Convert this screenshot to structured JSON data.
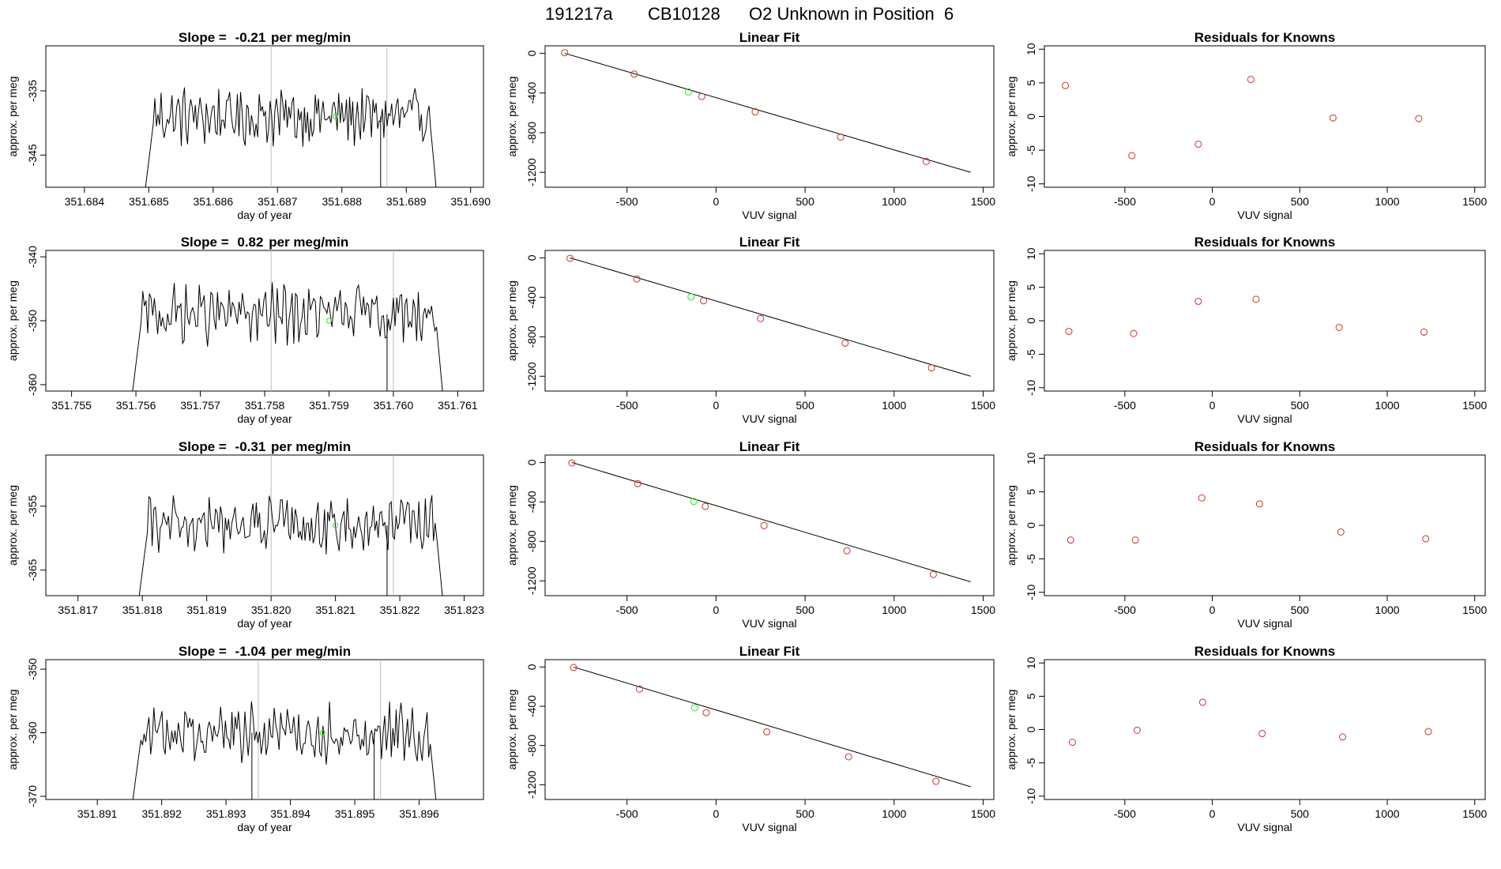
{
  "figure": {
    "title_parts": [
      "191217a",
      "CB10128",
      "O2 Unknown in Position  6"
    ]
  },
  "chart_data": [
    {
      "row": 0,
      "col": 0,
      "type": "line",
      "title_prefix": "Slope = ",
      "slope": "-0.21",
      "title_suffix": " per meg/min",
      "xlabel": "day of year",
      "ylabel": "approx. per meg",
      "xlim": [
        351.6834,
        351.6902
      ],
      "ylim": [
        -350,
        -328
      ],
      "xticks": [
        "351.684",
        "351.685",
        "351.686",
        "351.687",
        "351.688",
        "351.689",
        "351.690"
      ],
      "yticks": [
        "-335",
        "-345"
      ],
      "vlines": [
        351.6869,
        351.6887
      ],
      "x_start": 351.6849,
      "x_end": 351.6895,
      "y_center": -339,
      "amplitude": 3,
      "unknown_point": [
        351.6879,
        -339
      ]
    },
    {
      "row": 0,
      "col": 1,
      "type": "scatter",
      "title": "Linear Fit",
      "xlabel": "VUV signal",
      "ylabel": "approx. per meg",
      "xlim": [
        -960,
        1560
      ],
      "ylim": [
        -1350,
        75
      ],
      "xticks": [
        "-500",
        "0",
        "500",
        "1000",
        "1500"
      ],
      "yticks": [
        "0",
        "-400",
        "-800",
        "-1200"
      ],
      "fit_line": [
        [
          -850,
          0
        ],
        [
          1430,
          -1200
        ]
      ],
      "knowns": [
        [
          -850,
          5
        ],
        [
          -460,
          -210
        ],
        [
          -80,
          -435
        ],
        [
          220,
          -590
        ],
        [
          700,
          -845
        ],
        [
          1180,
          -1090
        ]
      ],
      "unknown_point": [
        -155,
        -390
      ]
    },
    {
      "row": 0,
      "col": 2,
      "type": "scatter",
      "title": "Residuals for Knowns",
      "xlabel": "VUV signal",
      "ylabel": "approx. per meg",
      "xlim": [
        -960,
        1560
      ],
      "ylim": [
        -10.5,
        10.5
      ],
      "xticks": [
        "-500",
        "0",
        "500",
        "1000",
        "1500"
      ],
      "yticks": [
        "10",
        "5",
        "0",
        "-5",
        "-10"
      ],
      "points": [
        [
          -840,
          4.6
        ],
        [
          -460,
          -5.8
        ],
        [
          -80,
          -4.1
        ],
        [
          220,
          5.5
        ],
        [
          690,
          -0.2
        ],
        [
          1180,
          -0.3
        ]
      ]
    },
    {
      "row": 1,
      "col": 0,
      "type": "line",
      "title_prefix": "Slope = ",
      "slope": "0.82",
      "title_suffix": " per meg/min",
      "xlabel": "day of year",
      "ylabel": "approx. per meg",
      "xlim": [
        351.7546,
        351.7614
      ],
      "ylim": [
        -361,
        -339
      ],
      "xticks": [
        "351.755",
        "351.756",
        "351.757",
        "351.758",
        "351.759",
        "351.760",
        "351.761"
      ],
      "yticks": [
        "-340",
        "-350",
        "-360"
      ],
      "vlines": [
        351.7581,
        351.76
      ],
      "x_start": 351.7559,
      "x_end": 351.7608,
      "y_center": -349,
      "amplitude": 3,
      "unknown_point": [
        351.759,
        -350
      ]
    },
    {
      "row": 1,
      "col": 1,
      "type": "scatter",
      "title": "Linear Fit",
      "xlabel": "VUV signal",
      "ylabel": "approx. per meg",
      "xlim": [
        -960,
        1560
      ],
      "ylim": [
        -1350,
        75
      ],
      "xticks": [
        "-500",
        "0",
        "500",
        "1000",
        "1500"
      ],
      "yticks": [
        "0",
        "-400",
        "-800",
        "-1200"
      ],
      "fit_line": [
        [
          -820,
          0
        ],
        [
          1430,
          -1200
        ]
      ],
      "knowns": [
        [
          -820,
          -5
        ],
        [
          -445,
          -215
        ],
        [
          -70,
          -435
        ],
        [
          250,
          -615
        ],
        [
          725,
          -865
        ],
        [
          1210,
          -1115
        ]
      ],
      "unknown_point": [
        -140,
        -395
      ]
    },
    {
      "row": 1,
      "col": 2,
      "type": "scatter",
      "title": "Residuals for Knowns",
      "xlabel": "VUV signal",
      "ylabel": "approx. per meg",
      "xlim": [
        -960,
        1560
      ],
      "ylim": [
        -10.5,
        10.5
      ],
      "xticks": [
        "-500",
        "0",
        "500",
        "1000",
        "1500"
      ],
      "yticks": [
        "10",
        "5",
        "0",
        "-5",
        "-10"
      ],
      "points": [
        [
          -820,
          -1.6
        ],
        [
          -450,
          -1.9
        ],
        [
          -80,
          2.9
        ],
        [
          250,
          3.2
        ],
        [
          725,
          -1.0
        ],
        [
          1210,
          -1.7
        ]
      ]
    },
    {
      "row": 2,
      "col": 0,
      "type": "line",
      "title_prefix": "Slope = ",
      "slope": "-0.31",
      "title_suffix": " per meg/min",
      "xlabel": "day of year",
      "ylabel": "approx. per meg",
      "xlim": [
        351.8165,
        351.8233
      ],
      "ylim": [
        -369,
        -347
      ],
      "xticks": [
        "351.817",
        "351.818",
        "351.819",
        "351.820",
        "351.821",
        "351.822",
        "351.823"
      ],
      "yticks": [
        "-355",
        "-365"
      ],
      "vlines": [
        351.82,
        351.8219
      ],
      "x_start": 351.8179,
      "x_end": 351.8227,
      "y_center": -358,
      "amplitude": 3,
      "unknown_point": [
        351.821,
        -358
      ]
    },
    {
      "row": 2,
      "col": 1,
      "type": "scatter",
      "title": "Linear Fit",
      "xlabel": "VUV signal",
      "ylabel": "approx. per meg",
      "xlim": [
        -960,
        1560
      ],
      "ylim": [
        -1350,
        75
      ],
      "xticks": [
        "-500",
        "0",
        "500",
        "1000",
        "1500"
      ],
      "yticks": [
        "0",
        "-400",
        "-800",
        "-1200"
      ],
      "fit_line": [
        [
          -810,
          0
        ],
        [
          1430,
          -1210
        ]
      ],
      "knowns": [
        [
          -810,
          -5
        ],
        [
          -440,
          -215
        ],
        [
          -60,
          -445
        ],
        [
          270,
          -640
        ],
        [
          735,
          -895
        ],
        [
          1220,
          -1135
        ]
      ],
      "unknown_point": [
        -125,
        -395
      ]
    },
    {
      "row": 2,
      "col": 2,
      "type": "scatter",
      "title": "Residuals for Knowns",
      "xlabel": "VUV signal",
      "ylabel": "approx. per meg",
      "xlim": [
        -960,
        1560
      ],
      "ylim": [
        -10.5,
        10.5
      ],
      "xticks": [
        "-500",
        "0",
        "500",
        "1000",
        "1500"
      ],
      "yticks": [
        "10",
        "5",
        "0",
        "-5",
        "-10"
      ],
      "points": [
        [
          -810,
          -2.2
        ],
        [
          -440,
          -2.2
        ],
        [
          -60,
          4.1
        ],
        [
          270,
          3.2
        ],
        [
          735,
          -1.0
        ],
        [
          1220,
          -2.0
        ]
      ]
    },
    {
      "row": 3,
      "col": 0,
      "type": "line",
      "title_prefix": "Slope = ",
      "slope": "-1.04",
      "title_suffix": " per meg/min",
      "xlabel": "day of year",
      "ylabel": "approx. per meg",
      "xlim": [
        351.8902,
        351.897
      ],
      "ylim": [
        -370.5,
        -348.5
      ],
      "xticks": [
        "351.891",
        "351.892",
        "351.893",
        "351.894",
        "351.895",
        "351.896"
      ],
      "yticks": [
        "-350",
        "-360",
        "-370"
      ],
      "vlines": [
        351.8935,
        351.8954
      ],
      "x_start": 351.8915,
      "x_end": 351.8963,
      "y_center": -360,
      "amplitude": 3,
      "unknown_point": [
        351.8945,
        -360
      ]
    },
    {
      "row": 3,
      "col": 1,
      "type": "scatter",
      "title": "Linear Fit",
      "xlabel": "VUV signal",
      "ylabel": "approx. per meg",
      "xlim": [
        -960,
        1560
      ],
      "ylim": [
        -1350,
        75
      ],
      "xticks": [
        "-500",
        "0",
        "500",
        "1000",
        "1500"
      ],
      "yticks": [
        "0",
        "-400",
        "-800",
        "-1200"
      ],
      "fit_line": [
        [
          -800,
          0
        ],
        [
          1430,
          -1220
        ]
      ],
      "knowns": [
        [
          -800,
          -5
        ],
        [
          -430,
          -225
        ],
        [
          -55,
          -465
        ],
        [
          285,
          -660
        ],
        [
          745,
          -915
        ],
        [
          1235,
          -1165
        ]
      ],
      "unknown_point": [
        -120,
        -415
      ]
    },
    {
      "row": 3,
      "col": 2,
      "type": "scatter",
      "title": "Residuals for Knowns",
      "xlabel": "VUV signal",
      "ylabel": "approx. per meg",
      "xlim": [
        -960,
        1560
      ],
      "ylim": [
        -10.5,
        10.5
      ],
      "xticks": [
        "-500",
        "0",
        "500",
        "1000",
        "1500"
      ],
      "yticks": [
        "10",
        "5",
        "0",
        "-5",
        "-10"
      ],
      "points": [
        [
          -800,
          -1.9
        ],
        [
          -430,
          -0.1
        ],
        [
          -55,
          4.1
        ],
        [
          285,
          -0.6
        ],
        [
          745,
          -1.1
        ],
        [
          1235,
          -0.3
        ]
      ]
    }
  ]
}
